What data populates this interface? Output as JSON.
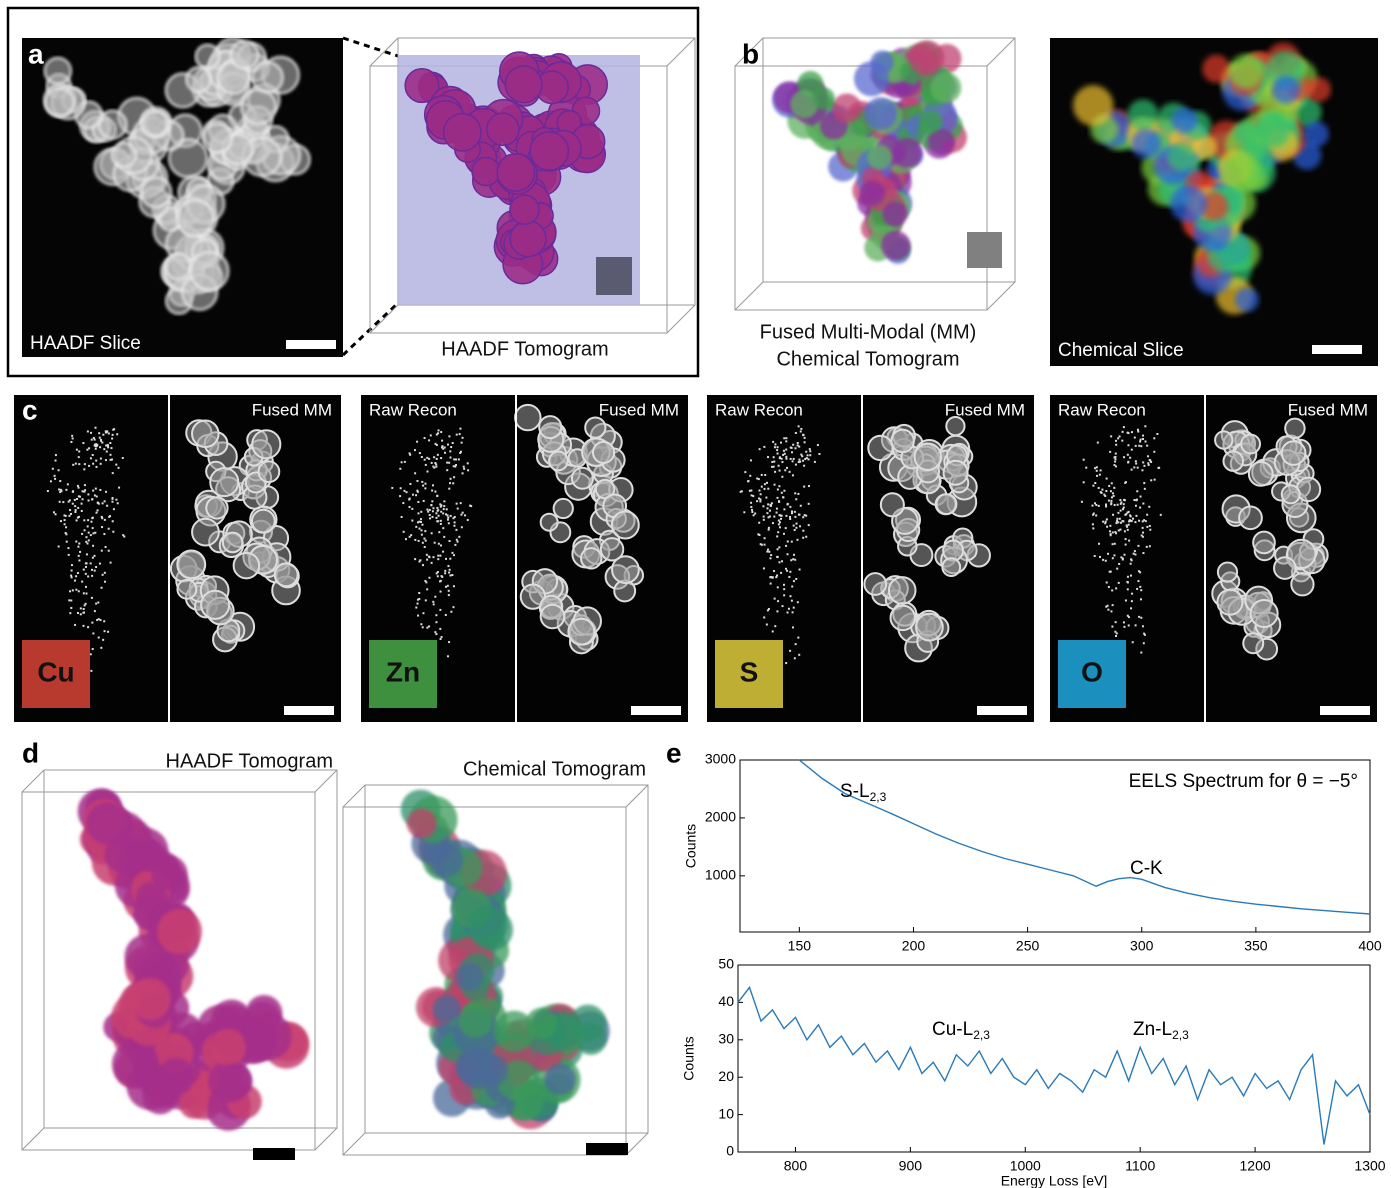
{
  "panels": {
    "a": {
      "label": "a",
      "slice_label": "HAADF Slice",
      "tomogram_label": "HAADF Tomogram"
    },
    "b": {
      "label": "b",
      "tomogram_label": [
        "Fused Multi-Modal (MM)",
        "Chemical Tomogram"
      ],
      "slice_label": "Chemical Slice"
    },
    "c": {
      "label": "c",
      "elements": [
        {
          "symbol": "Cu",
          "fused_label": "Fused MM",
          "color": "#b83a2e"
        },
        {
          "symbol": "Zn",
          "raw_label": "Raw Recon",
          "fused_label": "Fused MM",
          "color": "#3e8f3e"
        },
        {
          "symbol": "S",
          "raw_label": "Raw Recon",
          "fused_label": "Fused MM",
          "color": "#bfae34"
        },
        {
          "symbol": "O",
          "raw_label": "Raw Recon",
          "fused_label": "Fused MM",
          "color": "#1b8fbd"
        }
      ]
    },
    "d": {
      "label": "d",
      "left_label": "HAADF Tomogram",
      "right_label": "Chemical Tomogram"
    },
    "e": {
      "label": "e"
    }
  },
  "chart_data": [
    {
      "type": "line",
      "title": "EELS Spectrum for θ = −5°",
      "y_label": "Counts",
      "color": "#2a7ab8",
      "annotations": [
        {
          "text": "S-L",
          "sub": "2,3"
        },
        {
          "text": "C-K"
        }
      ],
      "x": [
        150,
        160,
        170,
        180,
        190,
        200,
        210,
        220,
        230,
        240,
        250,
        260,
        270,
        280,
        285,
        290,
        295,
        300,
        310,
        320,
        330,
        340,
        350,
        360,
        370,
        380,
        390,
        400
      ],
      "values": [
        3000,
        2680,
        2420,
        2250,
        2080,
        1900,
        1720,
        1560,
        1420,
        1300,
        1200,
        1100,
        1000,
        820,
        900,
        950,
        970,
        940,
        800,
        700,
        620,
        560,
        510,
        470,
        430,
        400,
        370,
        340
      ],
      "xlim": [
        124,
        400
      ],
      "xticks": [
        150,
        200,
        250,
        300,
        350,
        400
      ],
      "ylim": [
        30,
        3000
      ],
      "yticks": [
        1000,
        2000,
        3000
      ]
    },
    {
      "type": "line",
      "x_label": "Energy Loss [eV]",
      "y_label": "Counts",
      "color": "#2a7ab8",
      "annotations": [
        {
          "text": "Cu-L",
          "sub": "2,3"
        },
        {
          "text": "Zn-L",
          "sub": "2,3"
        }
      ],
      "x": [
        750,
        760,
        770,
        780,
        790,
        800,
        810,
        820,
        830,
        840,
        850,
        860,
        870,
        880,
        890,
        900,
        910,
        920,
        930,
        940,
        950,
        960,
        970,
        980,
        990,
        1000,
        1010,
        1020,
        1030,
        1040,
        1050,
        1060,
        1070,
        1080,
        1090,
        1100,
        1110,
        1120,
        1130,
        1140,
        1150,
        1160,
        1170,
        1180,
        1190,
        1200,
        1210,
        1220,
        1230,
        1240,
        1250,
        1260,
        1270,
        1280,
        1290,
        1300
      ],
      "values": [
        40,
        44,
        35,
        38,
        33,
        36,
        30,
        34,
        28,
        31,
        26,
        29,
        24,
        27,
        22,
        28,
        21,
        24,
        19,
        26,
        23,
        27,
        21,
        25,
        20,
        18,
        22,
        17,
        21,
        19,
        16,
        22,
        20,
        27,
        19,
        28,
        21,
        25,
        18,
        23,
        14,
        22,
        18,
        20,
        15,
        21,
        17,
        19,
        14,
        22,
        26,
        2,
        19,
        15,
        18,
        10
      ],
      "xlim": [
        750,
        1300
      ],
      "xticks": [
        800,
        900,
        1000,
        1100,
        1200,
        1300
      ],
      "ylim": [
        0,
        50
      ],
      "yticks": [
        0,
        10,
        20,
        30,
        40,
        50
      ]
    }
  ]
}
